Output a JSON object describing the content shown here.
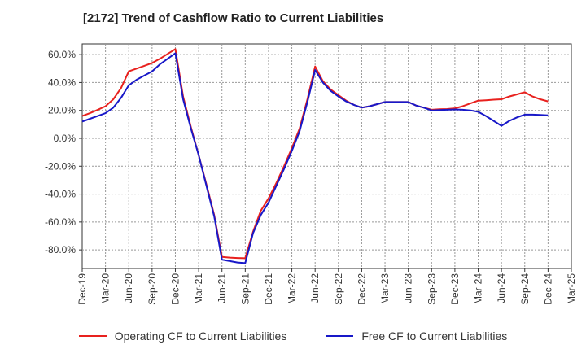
{
  "chart_data": {
    "type": "line",
    "title": "[2172]  Trend of Cashflow Ratio to Current Liabilities",
    "xlabel": "",
    "ylabel": "",
    "ylim": [
      -95,
      68
    ],
    "yticks": [
      "60.0%",
      "40.0%",
      "20.0%",
      "0.0%",
      "-20.0%",
      "-40.0%",
      "-60.0%",
      "-80.0%"
    ],
    "ytick_values": [
      60,
      40,
      20,
      0,
      -20,
      -40,
      -60,
      -80
    ],
    "xtick_labels": [
      "Dec-19",
      "Mar-20",
      "Jun-20",
      "Sep-20",
      "Dec-20",
      "Mar-21",
      "Jun-21",
      "Sep-21",
      "Dec-21",
      "Mar-22",
      "Jun-22",
      "Sep-22",
      "Dec-22",
      "Mar-23",
      "Jun-23",
      "Sep-23",
      "Dec-23",
      "Mar-24",
      "Jun-24",
      "Sep-24",
      "Dec-24",
      "Mar-25"
    ],
    "grid": true,
    "legend_position": "bottom",
    "x": [
      "Dec-19",
      "Jan-20",
      "Feb-20",
      "Mar-20",
      "Apr-20",
      "May-20",
      "Jun-20",
      "Jul-20",
      "Aug-20",
      "Sep-20",
      "Oct-20",
      "Nov-20",
      "Dec-20",
      "Jan-21",
      "Feb-21",
      "Mar-21",
      "Apr-21",
      "May-21",
      "Jun-21",
      "Jul-21",
      "Aug-21",
      "Sep-21",
      "Oct-21",
      "Nov-21",
      "Dec-21",
      "Jan-22",
      "Feb-22",
      "Mar-22",
      "Apr-22",
      "May-22",
      "Jun-22",
      "Jul-22",
      "Aug-22",
      "Sep-22",
      "Oct-22",
      "Nov-22",
      "Dec-22",
      "Jan-23",
      "Feb-23",
      "Mar-23",
      "Apr-23",
      "May-23",
      "Jun-23",
      "Jul-23",
      "Aug-23",
      "Sep-23",
      "Oct-23",
      "Nov-23",
      "Dec-23",
      "Jan-24",
      "Feb-24",
      "Mar-24",
      "Apr-24",
      "May-24",
      "Jun-24",
      "Jul-24",
      "Aug-24",
      "Sep-24",
      "Oct-24",
      "Nov-24",
      "Dec-24"
    ],
    "series": [
      {
        "name": "Operating CF to Current Liabilities",
        "color": "#e8211e",
        "values": [
          16,
          18,
          20.5,
          23,
          28,
          36,
          48,
          50,
          52,
          54,
          57,
          60.5,
          64,
          30,
          8,
          -12,
          -33,
          -55,
          -85,
          -85.5,
          -85.8,
          -86,
          -67,
          -52,
          -43,
          -32,
          -20,
          -7,
          7,
          28,
          51.5,
          41,
          35,
          31,
          27,
          24,
          22,
          23,
          24.5,
          26,
          26,
          26,
          26,
          23.5,
          22,
          20.5,
          20.8,
          21,
          21.5,
          23,
          25,
          27,
          27.3,
          27.7,
          28,
          30,
          31.5,
          33,
          30,
          28,
          26.5
        ]
      },
      {
        "name": "Free CF to Current Liabilities",
        "color": "#1818c8",
        "values": [
          12,
          14,
          16,
          18,
          22,
          29,
          38,
          42,
          45,
          48,
          53,
          57,
          61,
          28,
          7,
          -12,
          -34,
          -56,
          -87,
          -88,
          -89,
          -89.5,
          -68,
          -55,
          -46,
          -34,
          -22,
          -9,
          5,
          26,
          49,
          40,
          34,
          30,
          26.5,
          24,
          22,
          23,
          24.5,
          26,
          26,
          26,
          26,
          23.5,
          22,
          20,
          20.3,
          20.5,
          20.7,
          20.5,
          20,
          19,
          16,
          12.5,
          9,
          12.5,
          15,
          17,
          17,
          16.8,
          16.5
        ]
      }
    ]
  }
}
